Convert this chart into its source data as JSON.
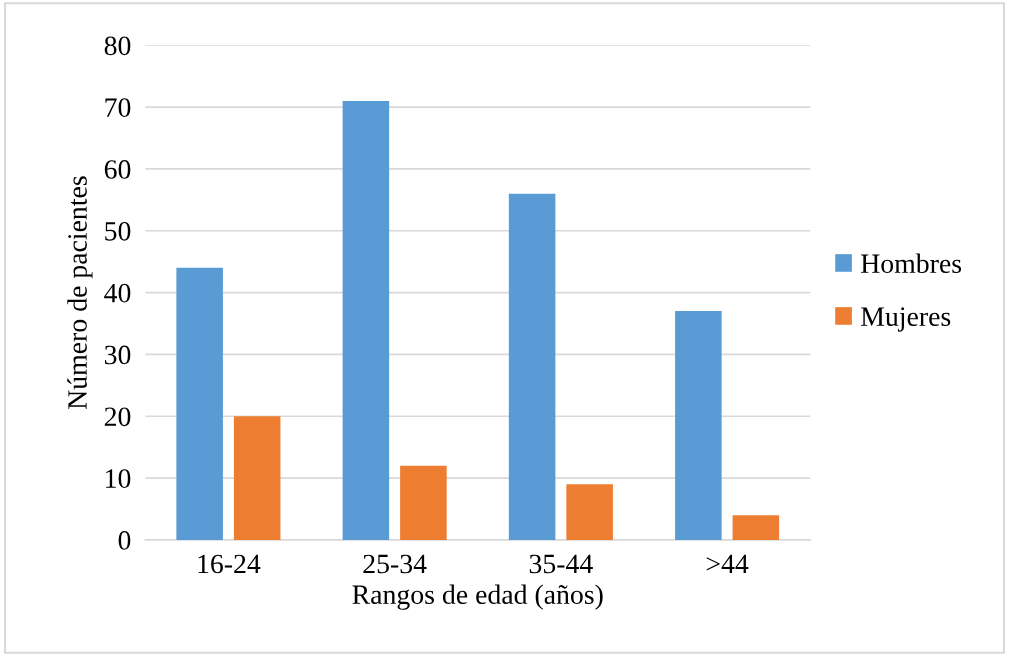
{
  "chart_data": {
    "type": "bar",
    "xlabel": "Rangos de edad (años)",
    "ylabel": "Número de pacientes",
    "categories": [
      "16-24",
      "25-34",
      "35-44",
      ">44"
    ],
    "series": [
      {
        "name": "Hombres",
        "color": "#5b9bd5",
        "values": [
          44,
          71,
          56,
          37
        ]
      },
      {
        "name": "Mujeres",
        "color": "#ed7d31",
        "values": [
          20,
          12,
          9,
          4
        ]
      }
    ],
    "ylim": [
      0,
      80
    ],
    "yticks": [
      0,
      10,
      20,
      30,
      40,
      50,
      60,
      70,
      80
    ],
    "grid": "y",
    "legend": "right"
  }
}
